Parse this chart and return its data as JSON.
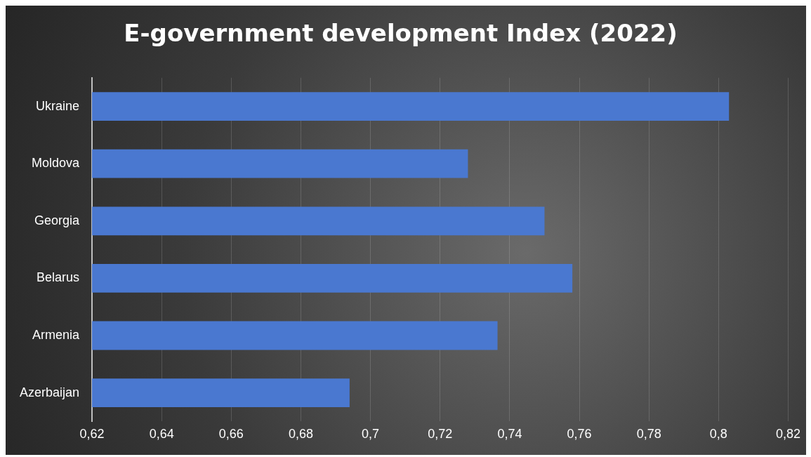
{
  "chart_data": {
    "type": "bar",
    "title": "E-government development Index (2022)",
    "orientation": "horizontal",
    "categories": [
      "Ukraine",
      "Moldova",
      "Georgia",
      "Belarus",
      "Armenia",
      "Azerbaijan"
    ],
    "values": [
      0.803,
      0.728,
      0.75,
      0.758,
      0.7365,
      0.694
    ],
    "color": "#4a78d0",
    "xlim": [
      0.62,
      0.82
    ],
    "xticks": [
      {
        "value": 0.62,
        "label": "0,62"
      },
      {
        "value": 0.64,
        "label": "0,64"
      },
      {
        "value": 0.66,
        "label": "0,66"
      },
      {
        "value": 0.68,
        "label": "0,68"
      },
      {
        "value": 0.7,
        "label": "0,7"
      },
      {
        "value": 0.72,
        "label": "0,72"
      },
      {
        "value": 0.74,
        "label": "0,74"
      },
      {
        "value": 0.76,
        "label": "0,76"
      },
      {
        "value": 0.78,
        "label": "0,78"
      },
      {
        "value": 0.8,
        "label": "0,8"
      },
      {
        "value": 0.82,
        "label": "0,82"
      }
    ],
    "grid": "x",
    "legend": false
  }
}
